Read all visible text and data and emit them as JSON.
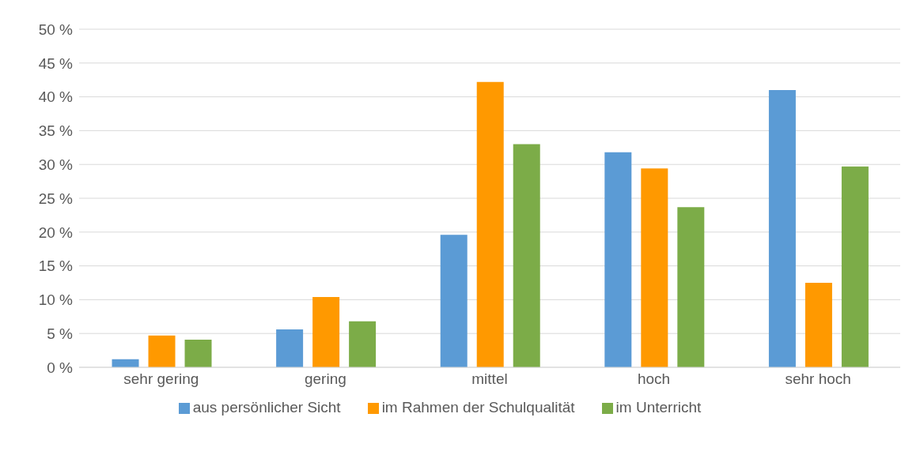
{
  "chart_data": {
    "type": "bar",
    "categories": [
      "sehr gering",
      "gering",
      "mittel",
      "hoch",
      "sehr hoch"
    ],
    "series": [
      {
        "name": "aus persönlicher Sicht",
        "color": "#5b9bd5",
        "values": [
          1.2,
          5.6,
          19.6,
          31.8,
          41.0
        ]
      },
      {
        "name": "im Rahmen der Schulqualität",
        "color": "#ff9900",
        "values": [
          4.7,
          10.4,
          42.2,
          29.4,
          12.5
        ]
      },
      {
        "name": "im Unterricht",
        "color": "#7cac48",
        "values": [
          4.1,
          6.8,
          33.0,
          23.7,
          29.7
        ]
      }
    ],
    "ylim": [
      0,
      50
    ],
    "yticks": [
      {
        "value": 0,
        "label": "0 %"
      },
      {
        "value": 5,
        "label": "5 %"
      },
      {
        "value": 10,
        "label": "10 %"
      },
      {
        "value": 15,
        "label": "15 %"
      },
      {
        "value": 20,
        "label": "20 %"
      },
      {
        "value": 25,
        "label": "25 %"
      },
      {
        "value": 30,
        "label": "30 %"
      },
      {
        "value": 35,
        "label": "35 %"
      },
      {
        "value": 40,
        "label": "40 %"
      },
      {
        "value": 45,
        "label": "45 %"
      },
      {
        "value": 50,
        "label": "50 %"
      }
    ],
    "grid": "y",
    "legend": "bottom"
  }
}
